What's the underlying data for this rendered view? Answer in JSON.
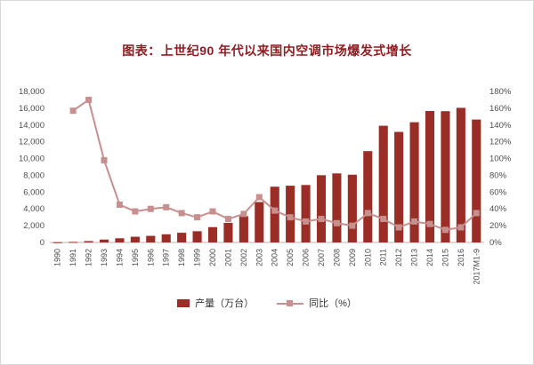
{
  "title": "图表：上世纪90 年代以来国内空调市场爆发式增长",
  "title_color": "#8f1d22",
  "chart_data": {
    "type": "bar+line",
    "title": "图表：上世纪90 年代以来国内空调市场爆发式增长",
    "categories": [
      "1990",
      "1991",
      "1992",
      "1993",
      "1994",
      "1995",
      "1996",
      "1997",
      "1998",
      "1999",
      "2000",
      "2001",
      "2002",
      "2003",
      "2004",
      "2005",
      "2006",
      "2007",
      "2008",
      "2009",
      "2010",
      "2011",
      "2012",
      "2013",
      "2014",
      "2015",
      "2016",
      "2017M1-9"
    ],
    "series": [
      {
        "name": "产量（万台）",
        "type": "bar",
        "axis": "left",
        "color": "#9a2d25",
        "values": [
          24,
          63,
          158,
          346,
          500,
          683,
          786,
          974,
          1157,
          1338,
          1827,
          2334,
          3135,
          4821,
          6646,
          6765,
          6850,
          8014,
          8231,
          8078,
          10887,
          13913,
          13180,
          14333,
          15670,
          15650,
          16049,
          14651
        ]
      },
      {
        "name": "同比（%）",
        "type": "line",
        "axis": "right",
        "color": "#c7908f",
        "values": [
          null,
          157,
          170,
          98,
          45,
          37,
          40,
          42,
          35,
          30,
          37,
          28,
          34,
          54,
          38,
          30,
          25,
          28,
          23,
          20,
          35,
          28,
          18,
          25,
          22,
          15,
          18,
          35
        ]
      }
    ],
    "left_axis": {
      "min": 0,
      "max": 18000,
      "step": 2000,
      "tick_labels": [
        "0",
        "2,000",
        "4,000",
        "6,000",
        "8,000",
        "10,000",
        "12,000",
        "14,000",
        "16,000",
        "18,000"
      ]
    },
    "right_axis": {
      "min": 0,
      "max": 180,
      "step": 20,
      "tick_labels": [
        "0%",
        "20%",
        "40%",
        "60%",
        "80%",
        "100%",
        "120%",
        "140%",
        "160%",
        "180%"
      ]
    },
    "legend_position": "bottom",
    "grid": false,
    "axis_text_color": "#4d4d4d"
  }
}
